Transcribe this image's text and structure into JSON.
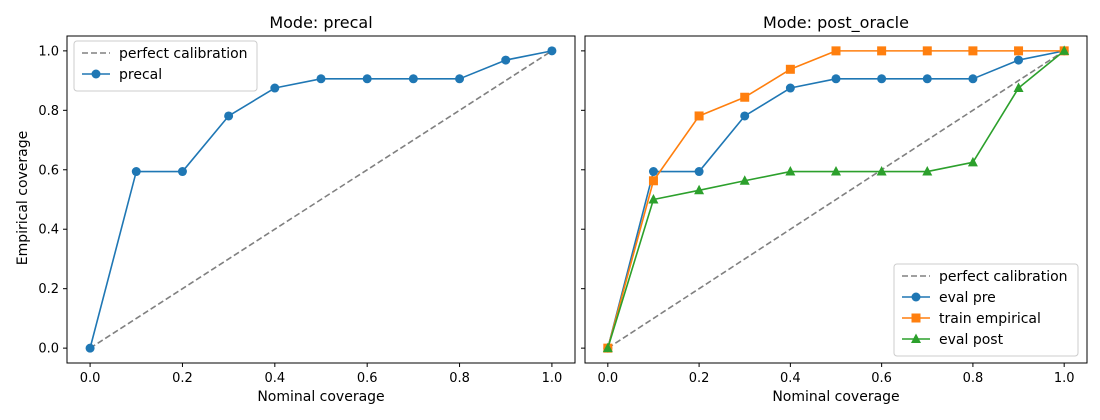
{
  "figure": {
    "ylabel": "Empirical coverage"
  },
  "chart_data": [
    {
      "type": "line",
      "title": "Mode: precal",
      "xlabel": "Nominal coverage",
      "ylabel": "Empirical coverage",
      "xlim": [
        -0.05,
        1.05
      ],
      "ylim": [
        -0.05,
        1.05
      ],
      "xticks": [
        "0.0",
        "0.2",
        "0.4",
        "0.6",
        "0.8",
        "1.0"
      ],
      "yticks": [
        "0.0",
        "0.2",
        "0.4",
        "0.6",
        "0.8",
        "1.0"
      ],
      "legend_position": "top-left",
      "series": [
        {
          "name": "perfect calibration",
          "style": "dashed",
          "marker": "none",
          "color": "#808080",
          "x": [
            0,
            1
          ],
          "y": [
            0,
            1
          ]
        },
        {
          "name": "precal",
          "style": "solid",
          "marker": "circle",
          "color": "#1f77b4",
          "x": [
            0.0,
            0.1,
            0.2,
            0.3,
            0.4,
            0.5,
            0.6,
            0.7,
            0.8,
            0.9,
            1.0
          ],
          "y": [
            0.0,
            0.594,
            0.594,
            0.781,
            0.875,
            0.906,
            0.906,
            0.906,
            0.906,
            0.969,
            1.0
          ]
        }
      ]
    },
    {
      "type": "line",
      "title": "Mode: post_oracle",
      "xlabel": "Nominal coverage",
      "ylabel": "",
      "xlim": [
        -0.05,
        1.05
      ],
      "ylim": [
        -0.05,
        1.05
      ],
      "xticks": [
        "0.0",
        "0.2",
        "0.4",
        "0.6",
        "0.8",
        "1.0"
      ],
      "yticks": [],
      "legend_position": "bottom-right",
      "series": [
        {
          "name": "perfect calibration",
          "style": "dashed",
          "marker": "none",
          "color": "#808080",
          "x": [
            0,
            1
          ],
          "y": [
            0,
            1
          ]
        },
        {
          "name": "eval pre",
          "style": "solid",
          "marker": "circle",
          "color": "#1f77b4",
          "x": [
            0.0,
            0.1,
            0.2,
            0.3,
            0.4,
            0.5,
            0.6,
            0.7,
            0.8,
            0.9,
            1.0
          ],
          "y": [
            0.0,
            0.594,
            0.594,
            0.781,
            0.875,
            0.906,
            0.906,
            0.906,
            0.906,
            0.969,
            1.0
          ]
        },
        {
          "name": "train empirical",
          "style": "solid",
          "marker": "square",
          "color": "#ff7f0e",
          "x": [
            0.0,
            0.1,
            0.2,
            0.3,
            0.4,
            0.5,
            0.6,
            0.7,
            0.8,
            0.9,
            1.0
          ],
          "y": [
            0.0,
            0.563,
            0.781,
            0.844,
            0.938,
            1.0,
            1.0,
            1.0,
            1.0,
            1.0,
            1.0
          ]
        },
        {
          "name": "eval post",
          "style": "solid",
          "marker": "triangle",
          "color": "#2ca02c",
          "x": [
            0.0,
            0.1,
            0.2,
            0.3,
            0.4,
            0.5,
            0.6,
            0.7,
            0.8,
            0.9,
            1.0
          ],
          "y": [
            0.0,
            0.5,
            0.531,
            0.563,
            0.594,
            0.594,
            0.594,
            0.594,
            0.625,
            0.875,
            1.0
          ]
        }
      ]
    }
  ]
}
